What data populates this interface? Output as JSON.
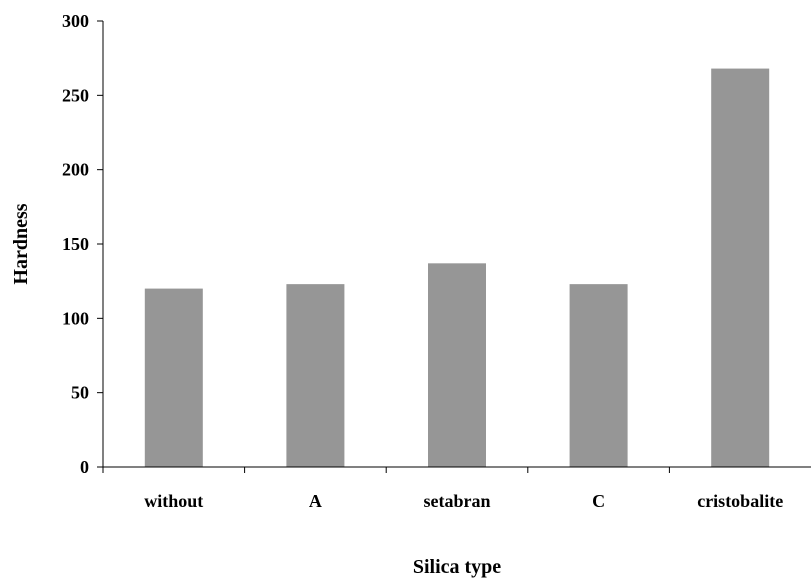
{
  "chart_data": {
    "type": "bar",
    "title": "",
    "xlabel": "Silica type",
    "ylabel": "Hardness",
    "categories": [
      "without",
      "A",
      "setabran",
      "C",
      "cristobalite"
    ],
    "values": [
      120,
      123,
      137,
      123,
      268
    ],
    "ylim": [
      0,
      300
    ],
    "yticks": [
      0,
      50,
      100,
      150,
      200,
      250,
      300
    ],
    "grid": false,
    "legend": "none",
    "bar_color": "#969696",
    "axis_color": "#000000"
  }
}
